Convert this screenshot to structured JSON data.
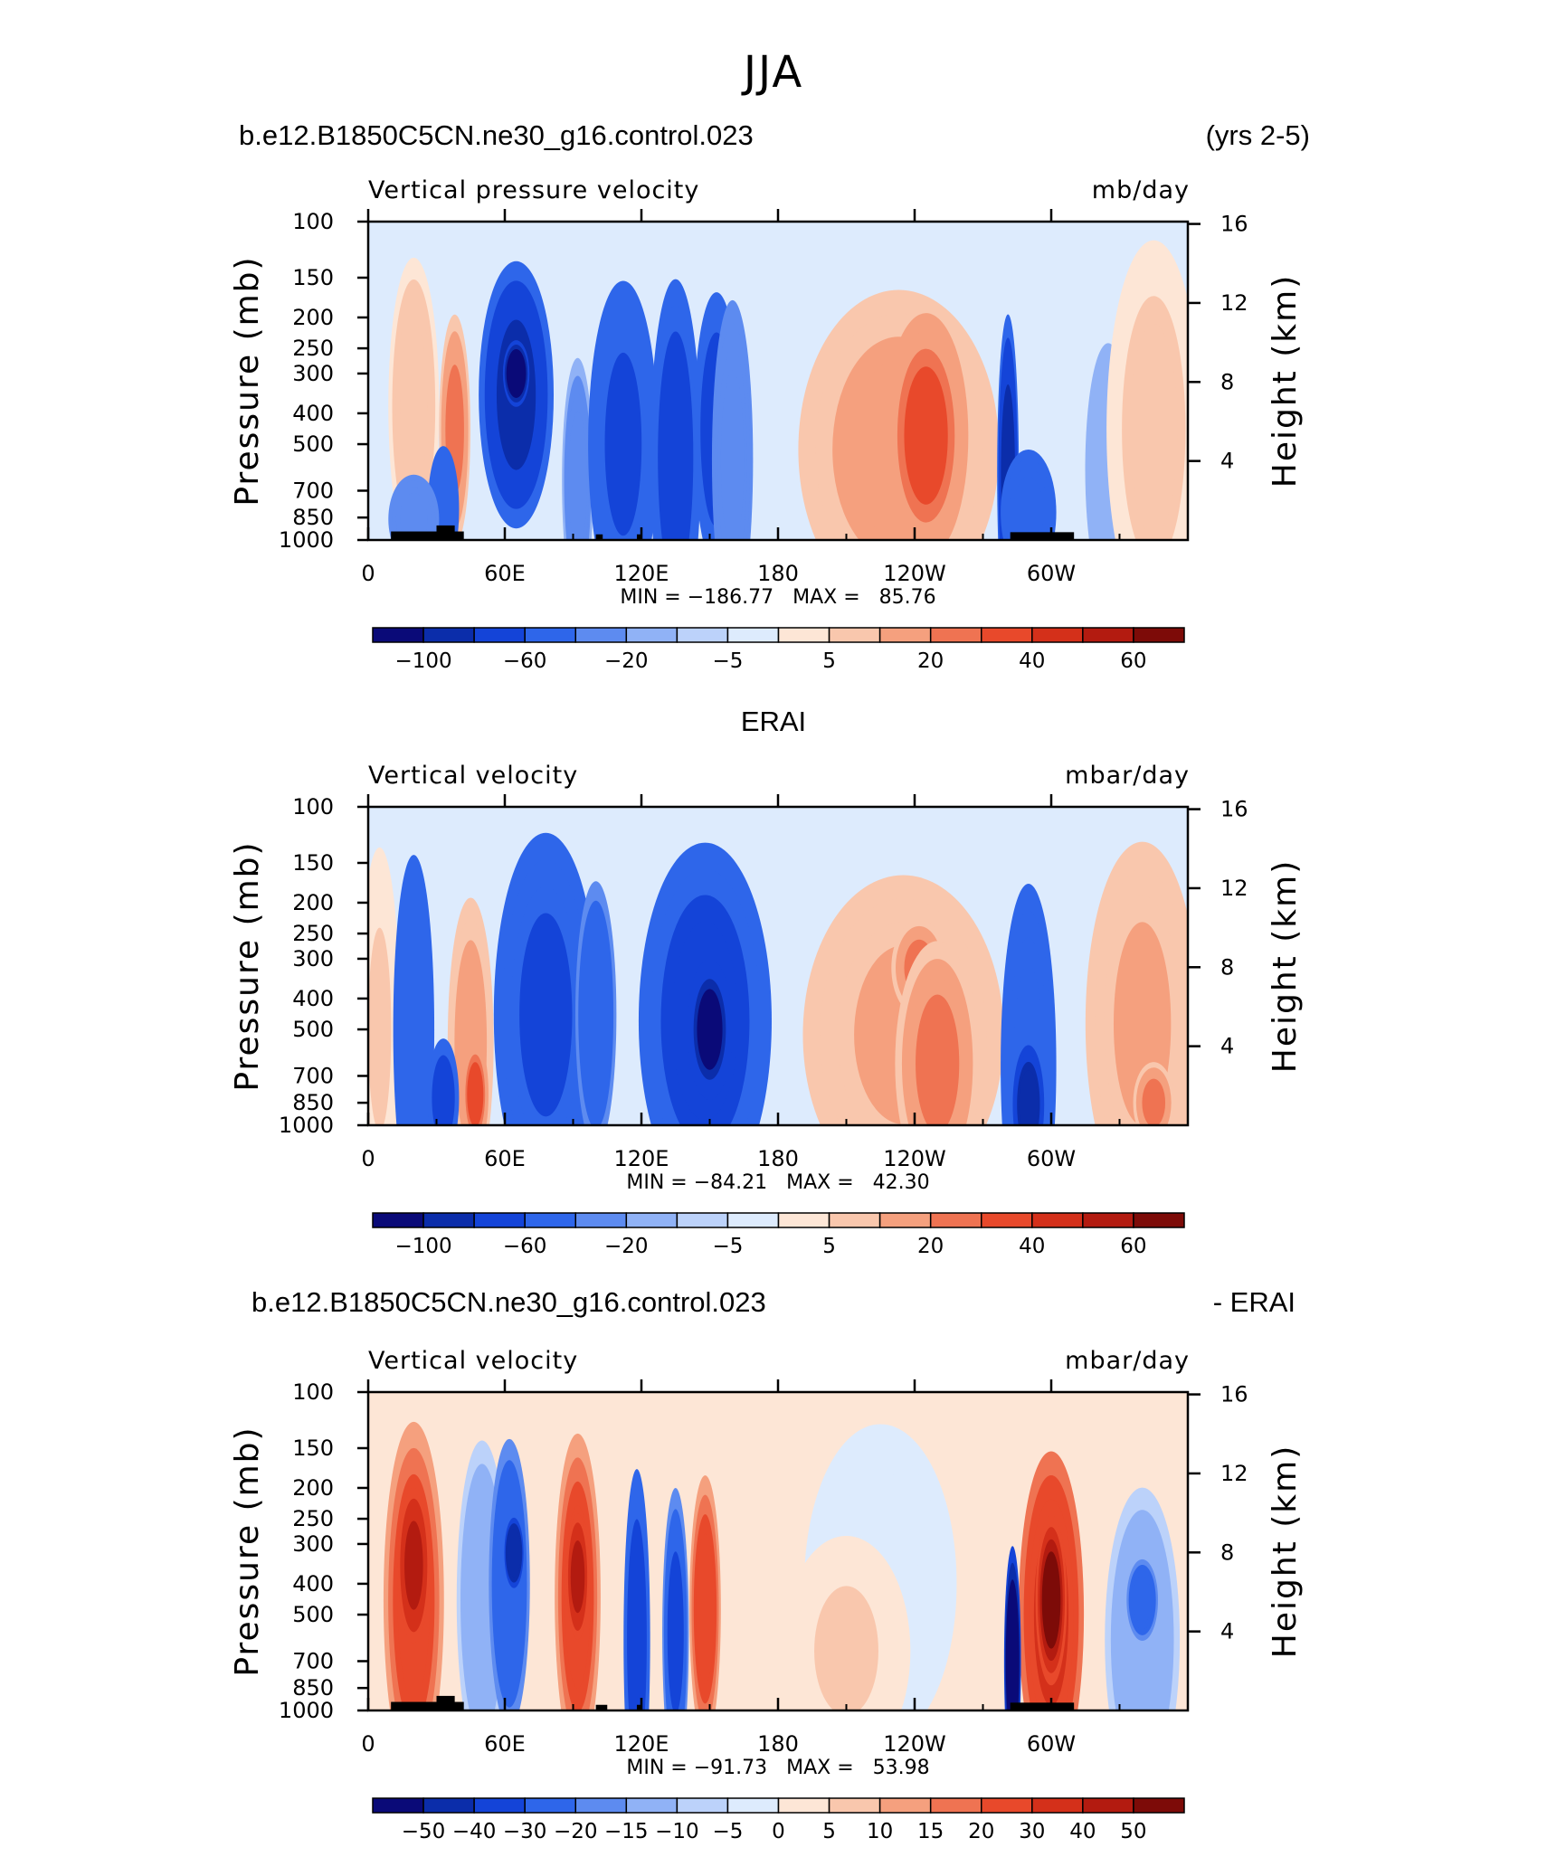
{
  "page": {
    "title": "JJA"
  },
  "panels": [
    {
      "left_title": "b.e12.B1850C5CN.ne30_g16.control.023",
      "right_title": "(yrs 2-5)",
      "center_title": "",
      "variable": "Vertical pressure velocity",
      "units": "mb/day",
      "minmax": "MIN = −186.77   MAX =   85.76",
      "colorbar_labels": [
        "−100",
        "−60",
        "−20",
        "−5",
        "5",
        "20",
        "40",
        "60"
      ]
    },
    {
      "left_title": "",
      "right_title": "",
      "center_title": "ERAI",
      "variable": "Vertical velocity",
      "units": "mbar/day",
      "minmax": "MIN = −84.21   MAX =   42.30",
      "colorbar_labels": [
        "−100",
        "−60",
        "−20",
        "−5",
        "5",
        "20",
        "40",
        "60"
      ]
    },
    {
      "left_title": "b.e12.B1850C5CN.ne30_g16.control.023",
      "right_title": "- ERAI",
      "center_title": "",
      "variable": "Vertical velocity",
      "units": "mbar/day",
      "minmax": "MIN = −91.73   MAX =   53.98",
      "colorbar_labels": [
        "−50",
        "−40",
        "−30",
        "−20",
        "−15",
        "−10",
        "−5",
        "0",
        "5",
        "10",
        "15",
        "20",
        "30",
        "40",
        "50"
      ]
    }
  ],
  "chart_data": [
    {
      "type": "heatmap",
      "title": "b.e12.B1850C5CN.ne30_g16.control.023",
      "subtitle": "Vertical pressure velocity",
      "units": "mb/day",
      "xlabel": "",
      "ylabel": "Pressure (mb)",
      "ylabel_right": "Height (km)",
      "x_ticks": [
        "0",
        "60E",
        "120E",
        "180",
        "120W",
        "60W"
      ],
      "y_ticks": [
        "100",
        "150",
        "200",
        "250",
        "300",
        "400",
        "500",
        "700",
        "850",
        "1000"
      ],
      "y_ticks_right": [
        "16",
        "12",
        "8",
        "4"
      ],
      "xlim": [
        0,
        360
      ],
      "ylim": [
        1000,
        100
      ],
      "min": -186.77,
      "max": 85.76,
      "levels": [
        -100,
        -80,
        -60,
        -40,
        -20,
        -10,
        -5,
        0,
        5,
        10,
        20,
        30,
        40,
        50,
        60,
        80
      ],
      "features": [
        {
          "lon": 20,
          "plev": 380,
          "w": 9,
          "h": 390,
          "value": 15
        },
        {
          "lon": 38,
          "plev": 450,
          "w": 5,
          "h": 300,
          "value": 30
        },
        {
          "lon": 33,
          "plev": 800,
          "w": 5,
          "h": 160,
          "value": -40
        },
        {
          "lon": 20,
          "plev": 860,
          "w": 9,
          "h": 110,
          "value": -20
        },
        {
          "lon": 65,
          "plev": 350,
          "w": 14,
          "h": 350,
          "value": -70
        },
        {
          "lon": 65,
          "plev": 300,
          "w": 4,
          "h": 80,
          "value": -110
        },
        {
          "lon": 92,
          "plev": 650,
          "w": 5,
          "h": 320,
          "value": -15
        },
        {
          "lon": 112,
          "plev": 500,
          "w": 13,
          "h": 430,
          "value": -45
        },
        {
          "lon": 135,
          "plev": 550,
          "w": 9,
          "h": 470,
          "value": -55
        },
        {
          "lon": 153,
          "plev": 450,
          "w": 8,
          "h": 360,
          "value": -50
        },
        {
          "lon": 160,
          "plev": 560,
          "w": 7,
          "h": 420,
          "value": -20
        },
        {
          "lon": 233,
          "plev": 520,
          "w": 40,
          "h": 420,
          "value": 25
        },
        {
          "lon": 245,
          "plev": 470,
          "w": 16,
          "h": 320,
          "value": 42
        },
        {
          "lon": 281,
          "plev": 620,
          "w": 3,
          "h": 420,
          "value": -70
        },
        {
          "lon": 290,
          "plev": 820,
          "w": 10,
          "h": 160,
          "value": -40
        },
        {
          "lon": 325,
          "plev": 600,
          "w": 8,
          "h": 330,
          "value": -10
        },
        {
          "lon": 345,
          "plev": 450,
          "w": 18,
          "h": 500,
          "value": 12
        }
      ],
      "land_bars": [
        [
          10,
          42,
          1000,
          940
        ],
        [
          30,
          38,
          1000,
          900
        ],
        [
          100,
          103,
          1000,
          960
        ],
        [
          118,
          120,
          1000,
          960
        ],
        [
          282,
          310,
          1000,
          945
        ]
      ]
    },
    {
      "type": "heatmap",
      "title": "ERAI",
      "subtitle": "Vertical velocity",
      "units": "mbar/day",
      "xlabel": "",
      "ylabel": "Pressure (mb)",
      "ylabel_right": "Height (km)",
      "x_ticks": [
        "0",
        "60E",
        "120E",
        "180",
        "120W",
        "60W"
      ],
      "y_ticks": [
        "100",
        "150",
        "200",
        "250",
        "300",
        "400",
        "500",
        "700",
        "850",
        "1000"
      ],
      "y_ticks_right": [
        "16",
        "12",
        "8",
        "4"
      ],
      "xlim": [
        0,
        360
      ],
      "ylim": [
        1000,
        100
      ],
      "min": -84.21,
      "max": 42.3,
      "levels": [
        -100,
        -80,
        -60,
        -40,
        -20,
        -10,
        -5,
        0,
        5,
        10,
        20,
        30,
        40,
        50,
        60,
        80
      ],
      "features": [
        {
          "lon": 5,
          "plev": 500,
          "w": 7,
          "h": 480,
          "value": 10
        },
        {
          "lon": 20,
          "plev": 500,
          "w": 7,
          "h": 460,
          "value": -40
        },
        {
          "lon": 45,
          "plev": 550,
          "w": 8,
          "h": 380,
          "value": 25
        },
        {
          "lon": 47,
          "plev": 800,
          "w": 4,
          "h": 140,
          "value": 40
        },
        {
          "lon": 33,
          "plev": 820,
          "w": 5,
          "h": 150,
          "value": -50
        },
        {
          "lon": 78,
          "plev": 450,
          "w": 20,
          "h": 480,
          "value": -45
        },
        {
          "lon": 100,
          "plev": 450,
          "w": 7,
          "h": 350,
          "value": -30
        },
        {
          "lon": 148,
          "plev": 470,
          "w": 26,
          "h": 470,
          "value": -50
        },
        {
          "lon": 150,
          "plev": 500,
          "w": 8,
          "h": 180,
          "value": -85
        },
        {
          "lon": 235,
          "plev": 520,
          "w": 40,
          "h": 420,
          "value": 20
        },
        {
          "lon": 242,
          "plev": 320,
          "w": 10,
          "h": 120,
          "value": 35
        },
        {
          "lon": 250,
          "plev": 640,
          "w": 16,
          "h": 320,
          "value": 30
        },
        {
          "lon": 290,
          "plev": 650,
          "w": 10,
          "h": 480,
          "value": -40
        },
        {
          "lon": 290,
          "plev": 860,
          "w": 5,
          "h": 150,
          "value": -80
        },
        {
          "lon": 340,
          "plev": 480,
          "w": 22,
          "h": 480,
          "value": 20
        },
        {
          "lon": 345,
          "plev": 850,
          "w": 7,
          "h": 100,
          "value": 35
        }
      ],
      "land_bars": []
    },
    {
      "type": "heatmap",
      "title": "b.e12.B1850C5CN.ne30_g16.control.023 - ERAI",
      "subtitle": "Vertical velocity",
      "units": "mbar/day",
      "xlabel": "",
      "ylabel": "Pressure (mb)",
      "ylabel_right": "Height (km)",
      "x_ticks": [
        "0",
        "60E",
        "120E",
        "180",
        "120W",
        "60W"
      ],
      "y_ticks": [
        "100",
        "150",
        "200",
        "250",
        "300",
        "400",
        "500",
        "700",
        "850",
        "1000"
      ],
      "y_ticks_right": [
        "16",
        "12",
        "8",
        "4"
      ],
      "xlim": [
        0,
        360
      ],
      "ylim": [
        1000,
        100
      ],
      "min": -91.73,
      "max": 53.98,
      "levels": [
        -60,
        -50,
        -40,
        -30,
        -20,
        -15,
        -10,
        -5,
        0,
        5,
        10,
        15,
        20,
        30,
        40,
        50
      ],
      "features": [
        {
          "lon": 20,
          "plev": 450,
          "w": 11,
          "h": 470,
          "value": 25
        },
        {
          "lon": 20,
          "plev": 350,
          "w": 5,
          "h": 200,
          "value": 45
        },
        {
          "lon": 50,
          "plev": 450,
          "w": 9,
          "h": 420,
          "value": -15
        },
        {
          "lon": 62,
          "plev": 400,
          "w": 7,
          "h": 380,
          "value": -30
        },
        {
          "lon": 64,
          "plev": 320,
          "w": 3,
          "h": 100,
          "value": -50
        },
        {
          "lon": 92,
          "plev": 440,
          "w": 8,
          "h": 430,
          "value": 25
        },
        {
          "lon": 92,
          "plev": 380,
          "w": 3,
          "h": 160,
          "value": 45
        },
        {
          "lon": 118,
          "plev": 600,
          "w": 4,
          "h": 450,
          "value": -40
        },
        {
          "lon": 135,
          "plev": 570,
          "w": 4,
          "h": 380,
          "value": -35
        },
        {
          "lon": 148,
          "plev": 480,
          "w": 5,
          "h": 350,
          "value": 25
        },
        {
          "lon": 225,
          "plev": 400,
          "w": 30,
          "h": 420,
          "value": -5
        },
        {
          "lon": 210,
          "plev": 650,
          "w": 25,
          "h": 300,
          "value": 5
        },
        {
          "lon": 300,
          "plev": 500,
          "w": 12,
          "h": 430,
          "value": 30
        },
        {
          "lon": 300,
          "plev": 450,
          "w": 5,
          "h": 220,
          "value": 50
        },
        {
          "lon": 283,
          "plev": 700,
          "w": 2,
          "h": 300,
          "value": -60
        },
        {
          "lon": 340,
          "plev": 600,
          "w": 14,
          "h": 400,
          "value": -15
        },
        {
          "lon": 340,
          "plev": 450,
          "w": 5,
          "h": 100,
          "value": -30
        }
      ],
      "land_bars": [
        [
          10,
          42,
          1000,
          940
        ],
        [
          30,
          38,
          1000,
          900
        ],
        [
          100,
          105,
          1000,
          960
        ],
        [
          118,
          120,
          1000,
          960
        ],
        [
          282,
          310,
          1000,
          945
        ]
      ]
    }
  ],
  "colors": {
    "palette": [
      "#0a0a78",
      "#0b2daa",
      "#1444d8",
      "#2e66ea",
      "#5d8bf0",
      "#90b2f6",
      "#bcd2fa",
      "#ddebfd",
      "#fde6d6",
      "#f9c7ad",
      "#f5a07e",
      "#ef7352",
      "#e8492b",
      "#d4301a",
      "#b31b10",
      "#7d0b08"
    ]
  }
}
